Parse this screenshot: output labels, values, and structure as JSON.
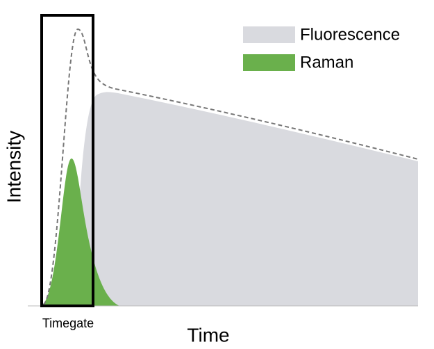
{
  "legend": {
    "items": [
      {
        "label": "Fluorescence"
      },
      {
        "label": "Raman"
      }
    ]
  },
  "axes": {
    "x_label": "Time",
    "y_label": "Intensity"
  },
  "annotation": {
    "label": "Timegate"
  }
}
